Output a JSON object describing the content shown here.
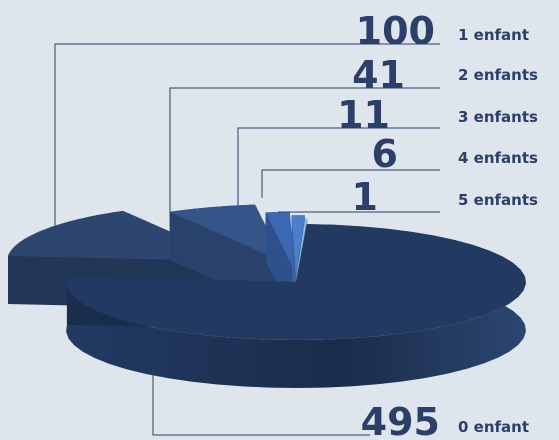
{
  "chart_data": {
    "type": "pie",
    "categories": [
      "0 enfant",
      "1 enfant",
      "2 enfants",
      "3 enfants",
      "4 enfants",
      "5 enfants"
    ],
    "values": [
      495,
      100,
      41,
      11,
      6,
      1
    ],
    "colors": [
      "#223a62",
      "#2c4670",
      "#35558a",
      "#3b67b3",
      "#4c7fcb",
      "#8bbde0"
    ],
    "style": "3d-exploded"
  }
}
